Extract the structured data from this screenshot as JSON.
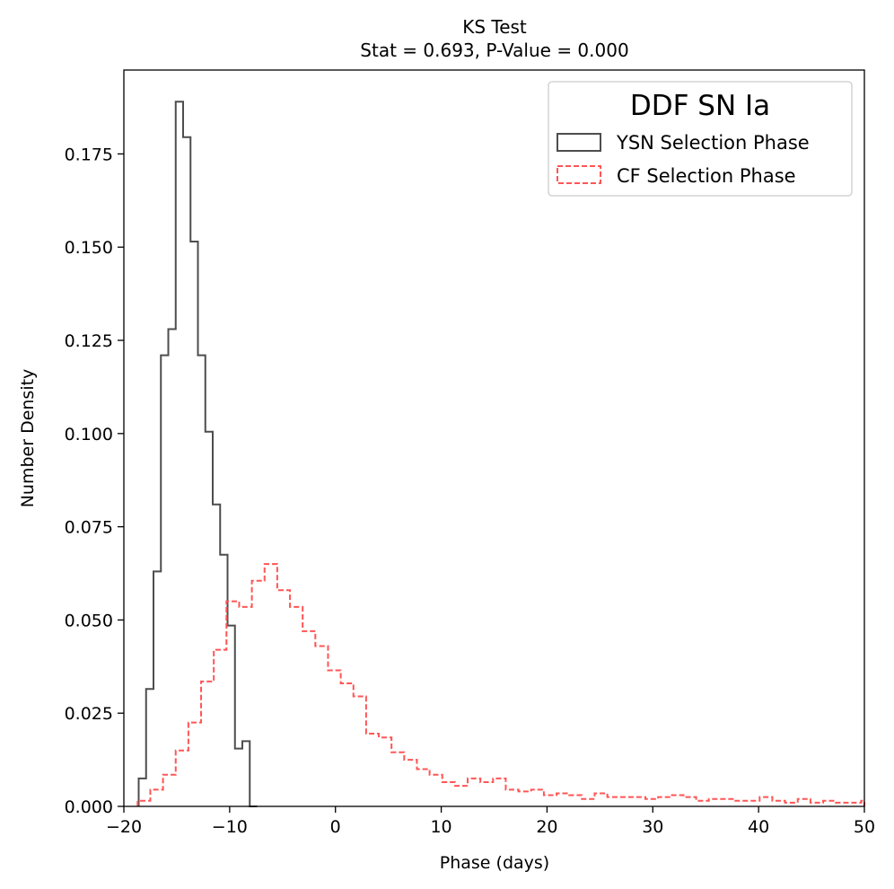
{
  "chart_data": {
    "type": "histogram",
    "title": "KS Test",
    "subtitle": "Stat = 0.693, P-Value = 0.000",
    "xlabel": "Phase (days)",
    "ylabel": "Number Density",
    "xlim": [
      -20,
      50
    ],
    "ylim": [
      0.0,
      0.1975
    ],
    "xticks": [
      -20,
      -10,
      0,
      10,
      20,
      30,
      40,
      50
    ],
    "xtick_labels": [
      "−20",
      "−10",
      "0",
      "10",
      "20",
      "30",
      "40",
      "50"
    ],
    "yticks": [
      0.0,
      0.025,
      0.05,
      0.075,
      0.1,
      0.125,
      0.15,
      0.175
    ],
    "ytick_labels": [
      "0.000",
      "0.025",
      "0.050",
      "0.075",
      "0.100",
      "0.125",
      "0.150",
      "0.175"
    ],
    "legend": {
      "title": "DDF SN Ia",
      "position": "top-right",
      "entries": [
        "YSN Selection Phase",
        "CF Selection Phase"
      ]
    },
    "series": [
      {
        "name": "YSN Selection Phase",
        "style": "solid",
        "color": "#4d4d4d",
        "edges": [
          -18.6,
          -17.9,
          -17.2,
          -16.5,
          -15.8,
          -15.1,
          -14.4,
          -13.7,
          -13.0,
          -12.3,
          -11.6,
          -10.9,
          -10.2,
          -9.5,
          -8.8,
          -8.1,
          -7.4
        ],
        "values": [
          0.0075,
          0.0315,
          0.063,
          0.121,
          0.128,
          0.189,
          0.1795,
          0.1515,
          0.121,
          0.1005,
          0.081,
          0.0675,
          0.0485,
          0.0155,
          0.0175,
          0.0
        ]
      },
      {
        "name": "CF Selection Phase",
        "style": "dashed",
        "color": "#ff5555",
        "edges": [
          -18.7,
          -17.5,
          -16.3,
          -15.1,
          -13.9,
          -12.7,
          -11.5,
          -10.3,
          -9.1,
          -7.9,
          -6.7,
          -5.5,
          -4.3,
          -3.1,
          -1.9,
          -0.7,
          0.5,
          1.7,
          2.9,
          4.1,
          5.3,
          6.5,
          7.7,
          8.9,
          10.1,
          11.3,
          12.5,
          13.7,
          14.9,
          16.1,
          17.3,
          18.5,
          19.7,
          20.9,
          22.1,
          23.3,
          24.5,
          25.7,
          26.9,
          28.1,
          29.3,
          30.5,
          31.7,
          32.9,
          34.1,
          35.3,
          36.5,
          37.7,
          38.9,
          40.1,
          41.3,
          42.5,
          43.7,
          44.9,
          46.1,
          47.3,
          48.5,
          49.7,
          50.9
        ],
        "values": [
          0.0015,
          0.0045,
          0.0085,
          0.015,
          0.0225,
          0.0335,
          0.042,
          0.055,
          0.0535,
          0.0605,
          0.065,
          0.058,
          0.0535,
          0.047,
          0.043,
          0.0365,
          0.033,
          0.0295,
          0.0195,
          0.0185,
          0.0145,
          0.0125,
          0.01,
          0.0085,
          0.0065,
          0.0055,
          0.0075,
          0.0065,
          0.0075,
          0.0045,
          0.004,
          0.0045,
          0.003,
          0.0035,
          0.003,
          0.002,
          0.0035,
          0.0025,
          0.0025,
          0.0025,
          0.002,
          0.0025,
          0.003,
          0.0025,
          0.0015,
          0.002,
          0.002,
          0.0015,
          0.0015,
          0.0025,
          0.0015,
          0.001,
          0.002,
          0.001,
          0.0015,
          0.001,
          0.001,
          0.0015
        ]
      }
    ]
  }
}
